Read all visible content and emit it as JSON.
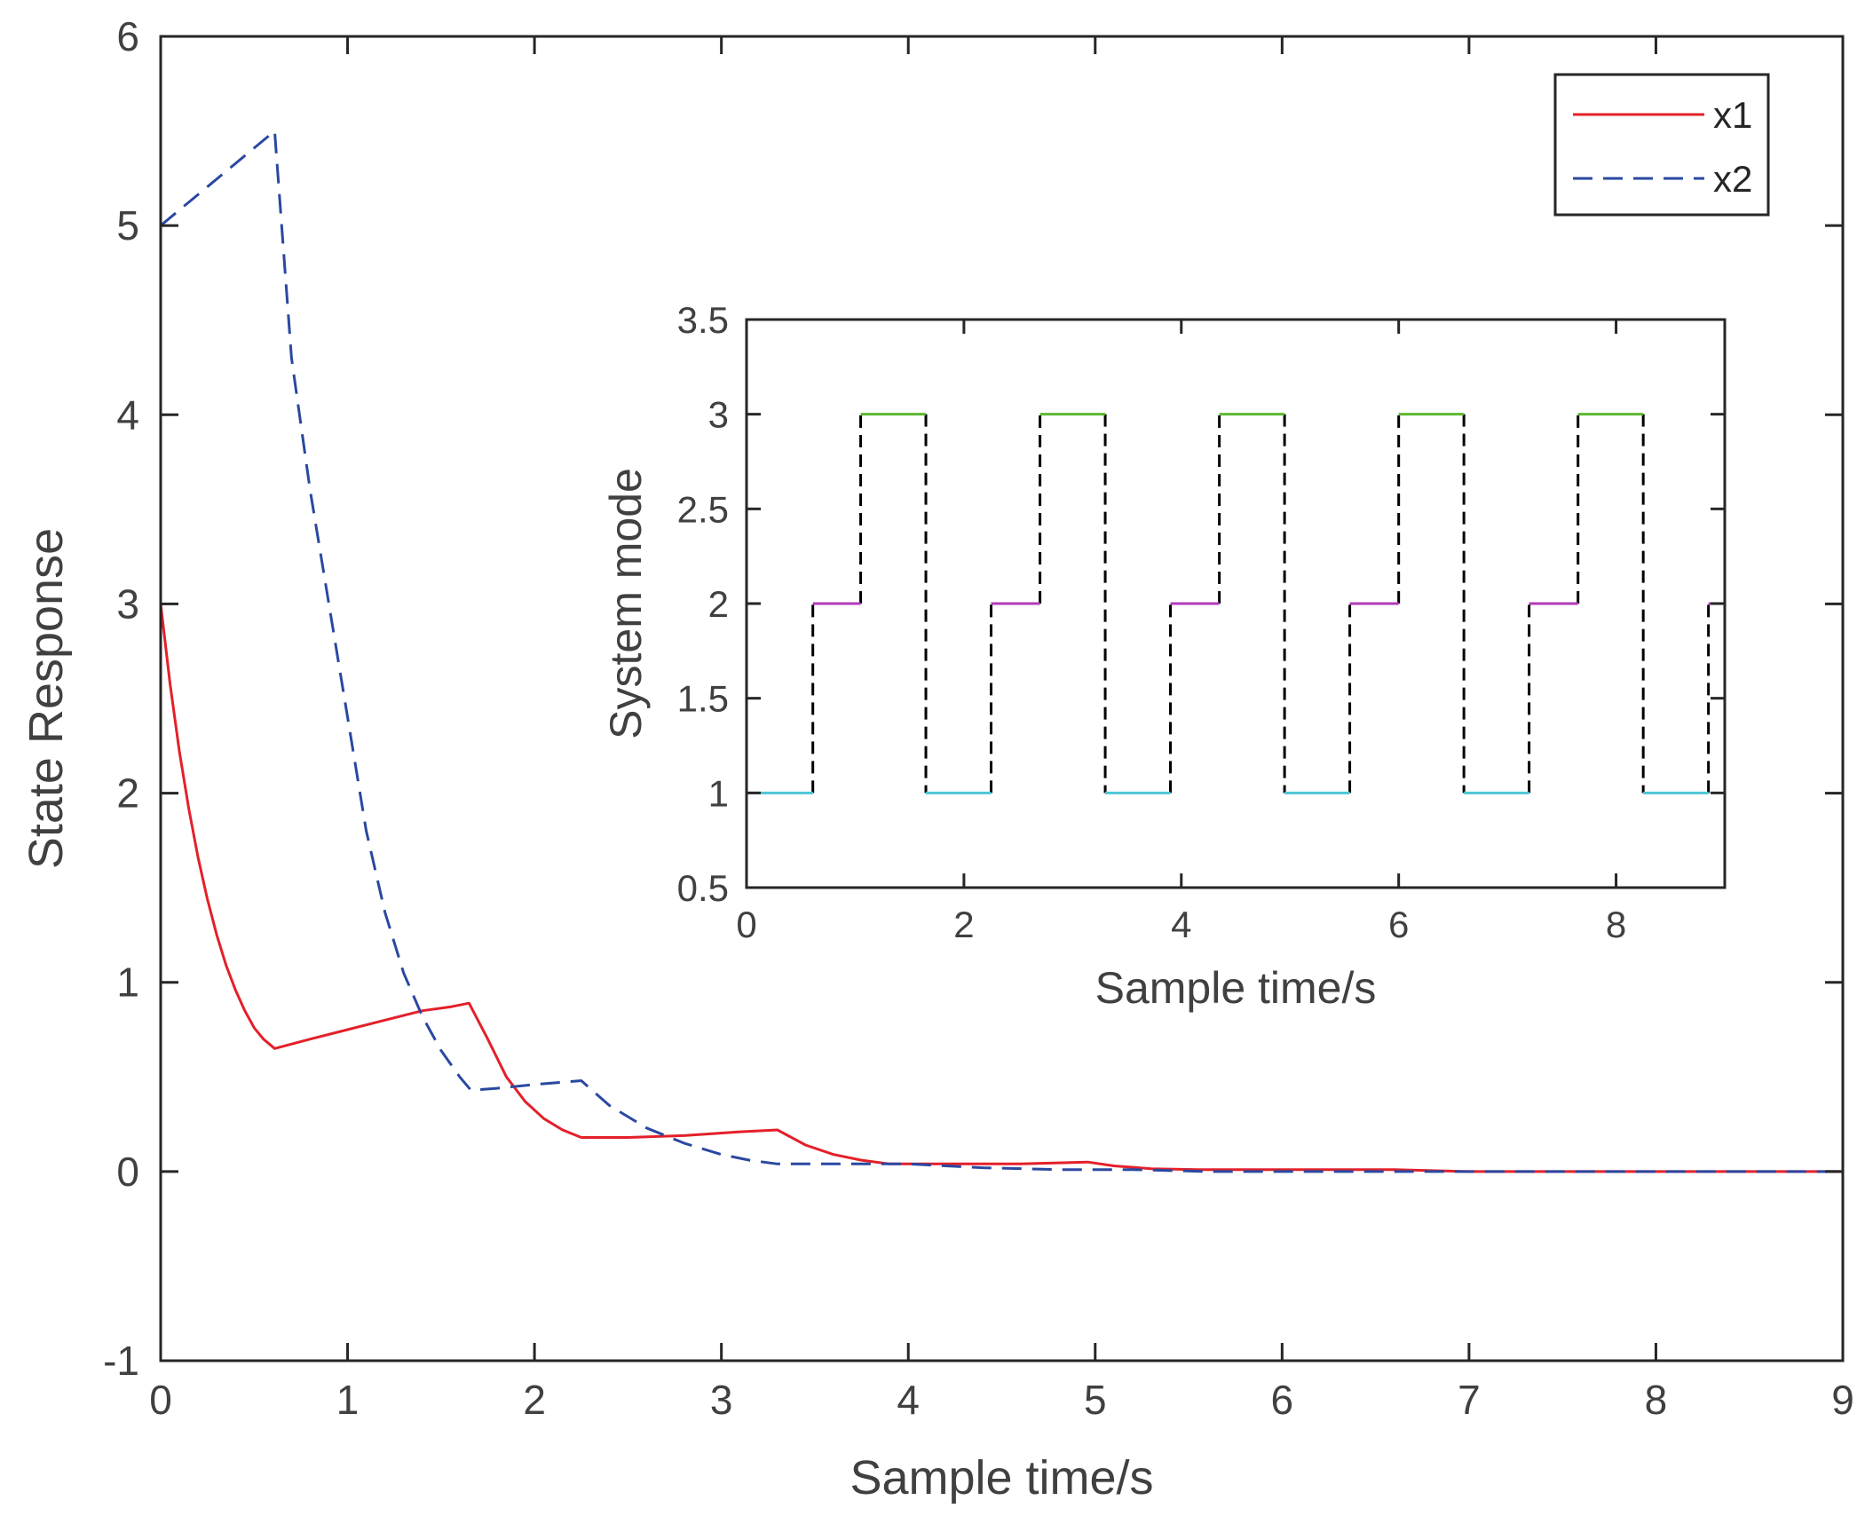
{
  "chart_data": [
    {
      "type": "line",
      "title": "",
      "xlabel": "Sample time/s",
      "ylabel": "State Response",
      "xlim": [
        0,
        9
      ],
      "ylim": [
        -1,
        6
      ],
      "xticks": [
        0,
        1,
        2,
        3,
        4,
        5,
        6,
        7,
        8,
        9
      ],
      "yticks": [
        -1,
        0,
        1,
        2,
        3,
        4,
        5,
        6
      ],
      "xtick_labels": [
        "0",
        "1",
        "2",
        "3",
        "4",
        "5",
        "6",
        "7",
        "8",
        "9"
      ],
      "ytick_labels": [
        "-1",
        "0",
        "1",
        "2",
        "3",
        "4",
        "5",
        "6"
      ],
      "grid": false,
      "legend_position": "top-right",
      "series": [
        {
          "name": "x1",
          "color": "#e3202a",
          "dash": "solid",
          "x": [
            0,
            0.05,
            0.1,
            0.15,
            0.2,
            0.25,
            0.3,
            0.35,
            0.4,
            0.45,
            0.5,
            0.55,
            0.61,
            0.8,
            1.0,
            1.2,
            1.4,
            1.55,
            1.65,
            1.75,
            1.85,
            1.95,
            2.05,
            2.15,
            2.25,
            2.5,
            2.8,
            3.1,
            3.3,
            3.45,
            3.6,
            3.75,
            3.9,
            4.2,
            4.6,
            4.96,
            5.1,
            5.3,
            5.55,
            6.0,
            6.6,
            7.0,
            7.5,
            8.0,
            8.5,
            9.0
          ],
          "values": [
            3.0,
            2.58,
            2.22,
            1.92,
            1.66,
            1.44,
            1.25,
            1.09,
            0.96,
            0.85,
            0.76,
            0.7,
            0.65,
            0.7,
            0.75,
            0.8,
            0.85,
            0.87,
            0.89,
            0.7,
            0.5,
            0.37,
            0.28,
            0.22,
            0.18,
            0.18,
            0.19,
            0.21,
            0.22,
            0.14,
            0.09,
            0.06,
            0.04,
            0.04,
            0.04,
            0.05,
            0.03,
            0.015,
            0.01,
            0.01,
            0.01,
            0.0,
            0.0,
            0.0,
            0.0,
            0.0
          ]
        },
        {
          "name": "x2",
          "color": "#2a48a0",
          "dash": "dashed",
          "x": [
            0,
            0.61,
            0.7,
            0.8,
            0.9,
            1.0,
            1.1,
            1.2,
            1.3,
            1.4,
            1.5,
            1.6,
            1.66,
            1.8,
            2.0,
            2.25,
            2.4,
            2.6,
            2.8,
            3.0,
            3.15,
            3.3,
            3.6,
            4.0,
            4.4,
            4.8,
            5.2,
            5.6,
            6.0,
            6.6,
            7.0,
            8.0,
            9.0
          ],
          "values": [
            5.0,
            5.5,
            4.3,
            3.6,
            3.0,
            2.4,
            1.8,
            1.37,
            1.05,
            0.82,
            0.64,
            0.5,
            0.43,
            0.44,
            0.46,
            0.48,
            0.35,
            0.23,
            0.15,
            0.09,
            0.06,
            0.04,
            0.04,
            0.04,
            0.02,
            0.01,
            0.01,
            0.0,
            0.0,
            0.0,
            0.0,
            0.0,
            0.0
          ]
        }
      ]
    },
    {
      "type": "line",
      "title": "",
      "xlabel": "Sample time/s",
      "ylabel": "System mode",
      "xlim": [
        0,
        9
      ],
      "ylim": [
        0.5,
        3.5
      ],
      "xticks": [
        0,
        2,
        4,
        6,
        8
      ],
      "yticks": [
        0.5,
        1,
        1.5,
        2,
        2.5,
        3,
        3.5
      ],
      "xtick_labels": [
        "0",
        "2",
        "4",
        "6",
        "8"
      ],
      "ytick_labels": [
        "0.5",
        "1",
        "1.5",
        "2",
        "2.5",
        "3",
        "3.5"
      ],
      "grid": false,
      "mode_colors": {
        "1": "#4cc6d4",
        "2": "#b03ab8",
        "3": "#5cb832"
      },
      "transition_color": "#000000",
      "segments": [
        {
          "x_start": 0.0,
          "x_end": 0.61,
          "mode": 1
        },
        {
          "x_start": 0.61,
          "x_end": 1.05,
          "mode": 2
        },
        {
          "x_start": 1.05,
          "x_end": 1.65,
          "mode": 3
        },
        {
          "x_start": 1.65,
          "x_end": 2.25,
          "mode": 1
        },
        {
          "x_start": 2.25,
          "x_end": 2.7,
          "mode": 2
        },
        {
          "x_start": 2.7,
          "x_end": 3.3,
          "mode": 3
        },
        {
          "x_start": 3.3,
          "x_end": 3.9,
          "mode": 1
        },
        {
          "x_start": 3.9,
          "x_end": 4.35,
          "mode": 2
        },
        {
          "x_start": 4.35,
          "x_end": 4.95,
          "mode": 3
        },
        {
          "x_start": 4.95,
          "x_end": 5.55,
          "mode": 1
        },
        {
          "x_start": 5.55,
          "x_end": 6.0,
          "mode": 2
        },
        {
          "x_start": 6.0,
          "x_end": 6.6,
          "mode": 3
        },
        {
          "x_start": 6.6,
          "x_end": 7.2,
          "mode": 1
        },
        {
          "x_start": 7.2,
          "x_end": 7.65,
          "mode": 2
        },
        {
          "x_start": 7.65,
          "x_end": 8.25,
          "mode": 3
        },
        {
          "x_start": 8.25,
          "x_end": 8.85,
          "mode": 1
        },
        {
          "x_start": 8.85,
          "x_end": 9.0,
          "mode": 2
        }
      ]
    }
  ]
}
